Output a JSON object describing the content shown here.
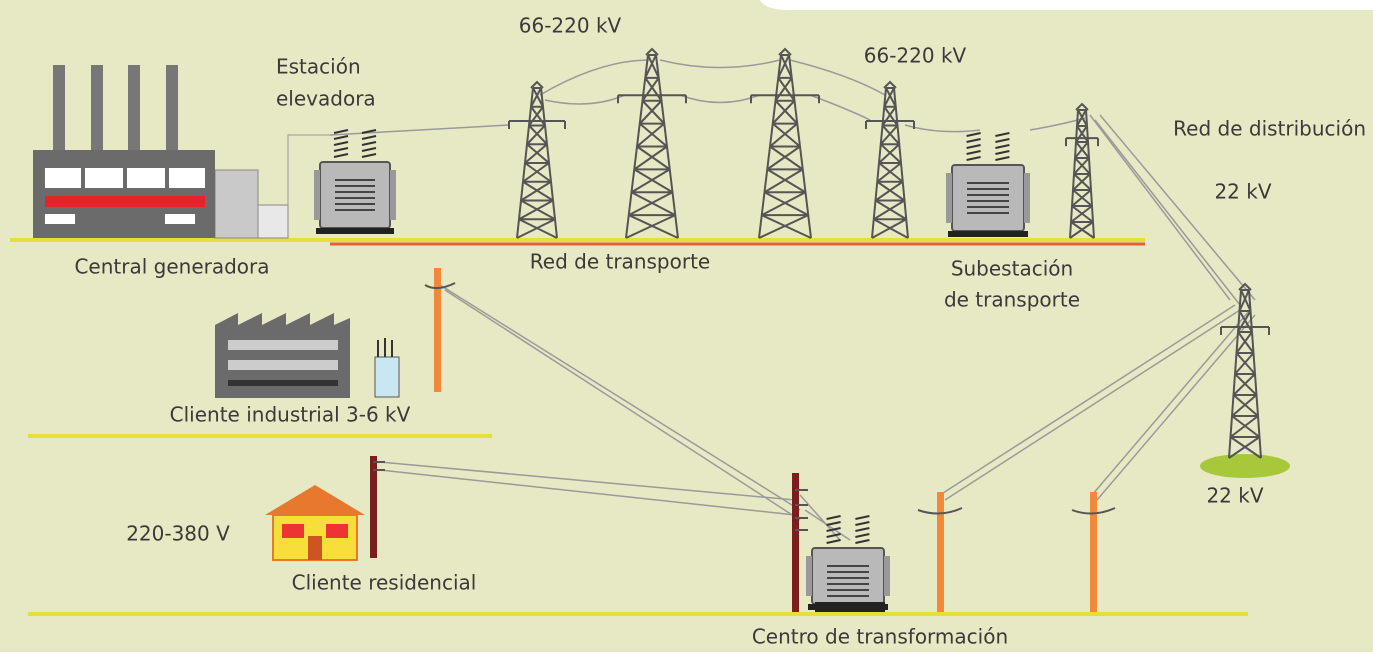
{
  "labels": {
    "transport_voltage_1": "66-220 kV",
    "transport_voltage_2": "66-220 kV",
    "step_up_station": [
      "Estación",
      "elevadora"
    ],
    "distribution_network": "Red de distribución",
    "distribution_voltage_1": "22 kV",
    "distribution_voltage_2": "22 kV",
    "power_plant": "Central generadora",
    "transport_network": "Red de transporte",
    "transport_substation": [
      "Subestación",
      "de transporte"
    ],
    "industrial_client": "Cliente industrial 3-6 kV",
    "residential_voltage": "220-380 V",
    "residential_client": "Cliente residencial",
    "transformation_center": "Centro de transformación"
  }
}
